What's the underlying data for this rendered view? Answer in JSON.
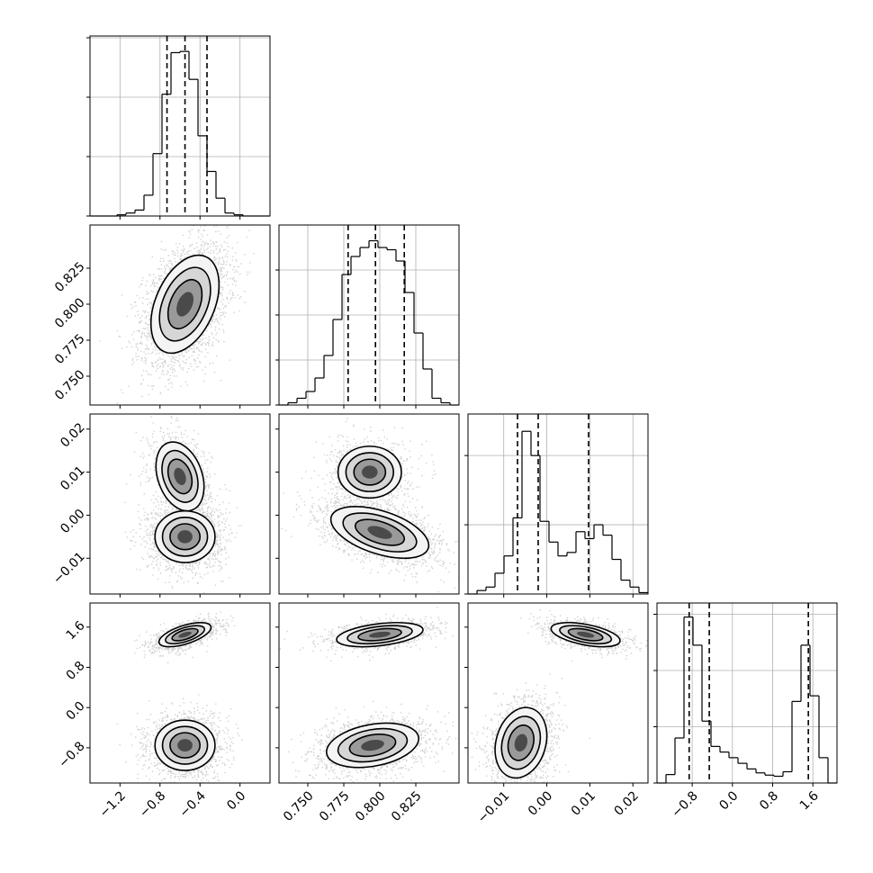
{
  "chart_data": {
    "type": "corner",
    "grid": true,
    "params": [
      {
        "lim": [
          -1.5,
          0.3
        ],
        "ticks": [
          {
            "value": -1.2,
            "label": "−1.2"
          },
          {
            "value": -0.8,
            "label": "−0.8"
          },
          {
            "value": -0.4,
            "label": "−0.4"
          },
          {
            "value": 0,
            "label": "0.0"
          }
        ],
        "bins": [
          -1.5,
          -1.41,
          -1.32,
          -1.23,
          -1.14,
          -1.05,
          -0.96,
          -0.87,
          -0.78,
          -0.69,
          -0.6,
          -0.51,
          -0.42,
          -0.33,
          -0.24,
          -0.15,
          -0.06,
          0.03,
          0.12,
          0.21,
          0.3
        ],
        "hist": [
          0,
          0,
          0,
          0.02,
          0.05,
          0.1,
          0.35,
          1.05,
          2.05,
          2.75,
          2.77,
          2.3,
          1.35,
          0.75,
          0.3,
          0.05,
          0.02,
          0,
          0,
          0
        ],
        "hist_ylim": [
          0,
          3.03
        ],
        "hist_yticks": [
          0,
          1,
          2,
          3
        ],
        "quantiles": [
          -0.73,
          -0.55,
          -0.33
        ]
      },
      {
        "lim": [
          0.73,
          0.855
        ],
        "ticks": [
          {
            "value": 0.75,
            "label": "0.750"
          },
          0.775,
          {
            "value": 0.8,
            "label": "0.800"
          },
          0.825
        ],
        "bins": [
          0.73,
          0.73625,
          0.7425,
          0.74875,
          0.755,
          0.76125,
          0.7675,
          0.77375,
          0.78,
          0.78625,
          0.7925,
          0.79875,
          0.805,
          0.81125,
          0.8175,
          0.82375,
          0.83,
          0.83625,
          0.8425,
          0.84875,
          0.855
        ],
        "hist": [
          0,
          0.05,
          0.15,
          0.3,
          0.6,
          1.1,
          1.9,
          2.9,
          3.3,
          3.5,
          3.65,
          3.5,
          3.45,
          3.2,
          2.5,
          1.6,
          0.8,
          0.15,
          0.05,
          0
        ],
        "hist_ylim": [
          0,
          4
        ],
        "hist_yticks": [
          0,
          1,
          2,
          3
        ],
        "quantiles": [
          0.778,
          0.797,
          0.817
        ]
      },
      {
        "lim": [
          -0.0183,
          0.0235
        ],
        "ticks": [
          {
            "value": -0.01,
            "label": "−0.01"
          },
          {
            "value": 0,
            "label": "0.00"
          },
          0.01,
          0.02
        ],
        "bins": [
          -0.0183,
          -0.01621,
          -0.01412,
          -0.01203,
          -0.00994,
          -0.00785,
          -0.00576,
          -0.00367,
          -0.00158,
          0.00051,
          0.0026,
          0.00469,
          0.00678,
          0.00887,
          0.01096,
          0.01305,
          0.01514,
          0.01723,
          0.01932,
          0.02141,
          0.0235
        ],
        "hist": [
          0,
          0.05,
          0.1,
          0.3,
          0.55,
          1.1,
          2.35,
          2.0,
          1.05,
          0.75,
          0.55,
          0.6,
          0.9,
          0.8,
          1.0,
          0.85,
          0.5,
          0.2,
          0.1,
          0.02
        ],
        "hist_ylim": [
          0,
          2.6
        ],
        "hist_yticks": [
          0,
          1,
          2
        ],
        "quantiles": [
          -0.0068,
          -0.002,
          0.0097
        ]
      },
      {
        "lim": [
          -1.5,
          2.08
        ],
        "ticks": [
          {
            "value": -0.8,
            "label": "−0.8"
          },
          {
            "value": 0,
            "label": "0.0"
          },
          0.8,
          1.6
        ],
        "bins": [
          -1.5,
          -1.321,
          -1.142,
          -0.963,
          -0.784,
          -0.605,
          -0.426,
          -0.247,
          -0.068,
          0.111,
          0.29,
          0.469,
          0.648,
          0.827,
          1.006,
          1.185,
          1.364,
          1.543,
          1.722,
          1.901,
          2.08
        ],
        "hist": [
          0,
          0.15,
          0.8,
          2.95,
          2.45,
          1.1,
          0.65,
          0.55,
          0.45,
          0.35,
          0.25,
          0.18,
          0.14,
          0.12,
          0.2,
          1.45,
          2.45,
          1.55,
          0.45,
          0
        ],
        "hist_ylim": [
          0,
          3.2
        ],
        "hist_yticks": [
          0,
          1,
          2,
          3
        ],
        "quantiles": [
          -0.86,
          -0.46,
          1.51
        ]
      }
    ],
    "pairs": [
      [
        {
          "components": [
            {
              "x": -0.55,
              "y": 0.8,
              "sx": 0.17,
              "sy": 0.017,
              "rho": 0.4,
              "w": 1
            }
          ]
        }
      ],
      [
        {
          "components": [
            {
              "x": -0.6,
              "y": 0.009,
              "sx": 0.12,
              "sy": 0.004,
              "rho": -0.3,
              "w": 0.35
            },
            {
              "x": -0.55,
              "y": -0.005,
              "sx": 0.15,
              "sy": 0.003,
              "rho": 0,
              "w": 0.65
            }
          ]
        },
        {
          "components": [
            {
              "x": 0.793,
              "y": 0.01,
              "sx": 0.011,
              "sy": 0.003,
              "rho": 0,
              "w": 0.35
            },
            {
              "x": 0.8,
              "y": -0.004,
              "sx": 0.017,
              "sy": 0.003,
              "rho": -0.5,
              "w": 0.65
            }
          ]
        }
      ],
      [
        {
          "components": [
            {
              "x": -0.55,
              "y": 1.45,
              "sx": 0.13,
              "sy": 0.12,
              "rho": 0.6,
              "w": 0.4
            },
            {
              "x": -0.55,
              "y": -0.75,
              "sx": 0.15,
              "sy": 0.25,
              "rho": 0,
              "w": 0.6
            }
          ]
        },
        {
          "components": [
            {
              "x": 0.8,
              "y": 1.45,
              "sx": 0.015,
              "sy": 0.12,
              "rho": 0.4,
              "w": 0.4
            },
            {
              "x": 0.795,
              "y": -0.75,
              "sx": 0.016,
              "sy": 0.22,
              "rho": 0.3,
              "w": 0.6
            }
          ]
        },
        {
          "components": [
            {
              "x": 0.009,
              "y": 1.45,
              "sx": 0.004,
              "sy": 0.12,
              "rho": -0.5,
              "w": 0.4
            },
            {
              "x": -0.006,
              "y": -0.7,
              "sx": 0.003,
              "sy": 0.35,
              "rho": 0.2,
              "w": 0.6
            }
          ]
        }
      ]
    ]
  }
}
